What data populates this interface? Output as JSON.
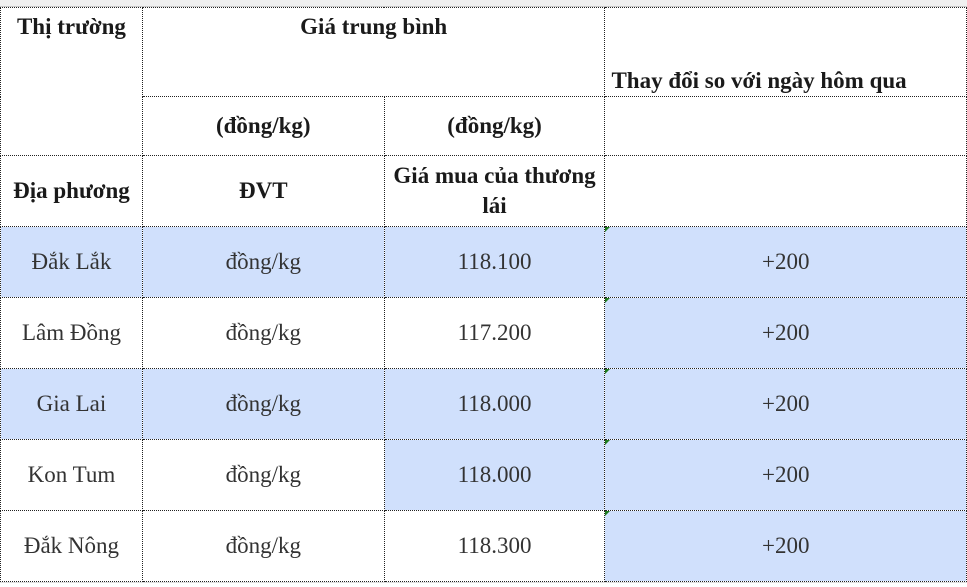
{
  "header": {
    "market": "Thị trường",
    "avg_price": "Giá trung bình",
    "change": "Thay đổi so với ngày hôm qua",
    "unit1": "(đồng/kg)",
    "unit2": "(đồng/kg)",
    "locality": "Địa phương",
    "dvt": "ĐVT",
    "trader_price": "Giá mua của thương lái"
  },
  "colors": {
    "highlight": "#d0e0fc",
    "error_triangle": "#1e7a1e"
  },
  "rows": [
    {
      "locality": "Đắk Lắk",
      "unit": "đồng/kg",
      "price": "118.100",
      "change": "+200"
    },
    {
      "locality": "Lâm Đồng",
      "unit": "đồng/kg",
      "price": "117.200",
      "change": "+200"
    },
    {
      "locality": "Gia Lai",
      "unit": "đồng/kg",
      "price": "118.000",
      "change": "+200"
    },
    {
      "locality": "Kon Tum",
      "unit": "đồng/kg",
      "price": "118.000",
      "change": "+200"
    },
    {
      "locality": "Đắk Nông",
      "unit": "đồng/kg",
      "price": "118.300",
      "change": "+200"
    }
  ]
}
